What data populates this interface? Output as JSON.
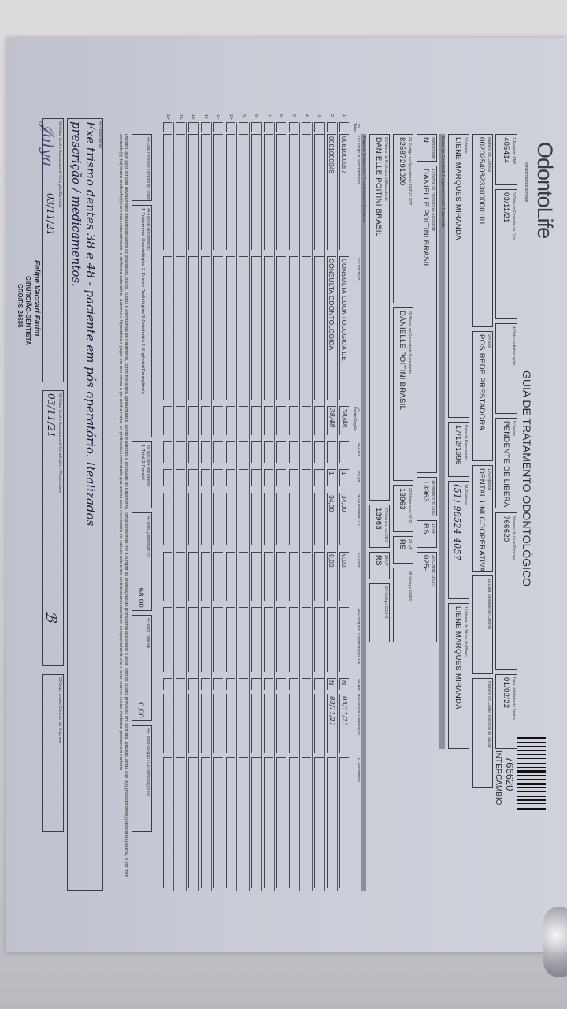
{
  "header": {
    "logo": "OdontoLife",
    "logo_tagline": "transformando sorrisos",
    "title": "GUIA DE TRATAMENTO ODONTOLÓGICO",
    "guide_number": "766620",
    "guide_type": "INTERCAMBIO"
  },
  "row1": {
    "ans": {
      "label": "1-Registro ANS",
      "value": "405414"
    },
    "emission": {
      "label": "3-Data de Emissão da Guia",
      "value": "03/11/21"
    },
    "authorization_date": {
      "label": "4-Data da Autorização",
      "value": ""
    },
    "password": {
      "label": "5-Senha",
      "value": "PENDENTE DE LIBERAÇÃO"
    },
    "main_guide": {
      "label": "Número da Guia Principal",
      "value": "766620"
    },
    "password_validity": {
      "label": "Data Validade da Senha",
      "value": "01/02/22"
    }
  },
  "row2": {
    "card": {
      "label": "Número da Carteira",
      "value": "00202540823300000101"
    },
    "plan": {
      "label": "9-Plano",
      "value": "POS REDE PRESTADORA"
    },
    "company": {
      "label": "10-Empresa",
      "value": "DENTAL UNI COOPERATIVA"
    },
    "card_validity": {
      "label": "11-Data Validade da Carteira",
      "value": ""
    },
    "sus_card": {
      "label": "Número do Cartão Nacional de Saúde",
      "value": ""
    }
  },
  "row3": {
    "name": {
      "label": "13-Nome",
      "value": "LIENE MARQUES MIRANDA"
    },
    "birth": {
      "label": "Data de Nascimento",
      "value": "17/12/1996"
    },
    "phone": {
      "label": "14-Telefone",
      "value": "(51) 98524 4057"
    },
    "holder": {
      "label": "15-Nome do Titular do Plano",
      "value": "LIENE MARQUES MIRANDA"
    }
  },
  "section_contracted": "Dados do Contratado Responsável pelo Tratamento",
  "row4": {
    "rn": {
      "label": "Atendimento a RN",
      "value": "N"
    },
    "professional": {
      "label": "17-Nome do Profissional Solicitante",
      "value": "DANIELLE POITINI BRASIL"
    },
    "cro": {
      "label": "18-Número no CRO",
      "value": "13963"
    },
    "uf": {
      "label": "19-UF",
      "value": "RS"
    },
    "cbo": {
      "label": "20-Código CBO-S",
      "value": "025-"
    }
  },
  "row5": {
    "operator_code": {
      "label": "21-Código na Operadora / CNPJ / CPF",
      "value": "82587291020"
    },
    "executor": {
      "label": "22-Nome do Contratado Executante",
      "value": "DANIELLE POITINI BRASIL"
    },
    "cro": {
      "label": "23-Número no CRO",
      "value": "13963"
    },
    "uf": {
      "label": "24-UF",
      "value": "RS"
    },
    "cnes": {
      "label": "25-Código CNES",
      "value": ""
    }
  },
  "row6": {
    "executor_prof": {
      "label": "26-Nome do Profissional Executante",
      "value": "DANIELLE POITINI BRASIL"
    },
    "cro": {
      "label": "27-Número no CRO",
      "value": "13963"
    },
    "uf": {
      "label": "28-UF",
      "value": "RS"
    },
    "cbo": {
      "label": "29-Código CBO-S",
      "value": ""
    }
  },
  "section_procedures": "Plano de Tratamento / Procedimentos Solicitados",
  "table": {
    "columns": [
      "30-Tabela",
      "31-Código do Procedimento",
      "32-Descrição",
      "33-Dente/Região",
      "34-Face",
      "35-Qtd",
      "36-Quantidade US",
      "37-Valor",
      "38-Franquia/Co-participação R$",
      "39-Aut",
      "40-Data de Realização",
      "41-Assinatura"
    ],
    "rows": [
      [
        "",
        "0081000057",
        "CONSULTA ODONTOLOGICA DE",
        "38/48",
        "",
        "1",
        "34,00",
        "0,00",
        "",
        "N",
        "03/11/21",
        ""
      ],
      [
        "",
        "0081000049",
        "CONSULTA ODONTOLOGICA",
        "38/48",
        "",
        "1",
        "34,00",
        "0,00",
        "",
        "N",
        "03/11/21",
        ""
      ]
    ]
  },
  "totals": {
    "end_date": {
      "label": "43-Data Provável Término do Tratamento",
      "value": ""
    },
    "service_type": {
      "label": "44-Tipo de Atendimento",
      "value": "1-Tratamento Odontológico 2-Exame Radiológico 3-Ortodontia 4-Urgência/Emergência"
    },
    "billing_type": {
      "label": "45-Tipo de Faturamento",
      "value": "1-Total 2-Parcial"
    },
    "total_us": {
      "label": "46-Total Quantidade US",
      "value": "68,00"
    },
    "total_value": {
      "label": "47-Valor Total R$",
      "value": "0,00"
    },
    "total_franchise": {
      "label": "48-Total Franquia / Co-participação R$",
      "value": ""
    }
  },
  "declaration": "Declaro, que após ter sido devidamente esclarecido sobre os propósitos, riscos, custos e alternativas de tratamento, conforme acima apresentados, aceito e autorizo a execução do tratamento, comprometendo-me a cumprir as orientações do profissional assistente e arcar com os custos previstos em contrato. Declaro, ainda que o(s) procedimento(s) descrito(s) acima, e por mim assinado(s), foi(foram) realizado(s) com meu consentimento e de forma satisfatória. Autorizo a Operadora a pagar em meu nome e por minha conta, ao profissional contratado que assina esse documento, os valores referentes ao tratamento realizado, comprometendo-me a arcar com os custos conforme previsto em contrato.",
  "observation": {
    "label": "49-Observação",
    "line1": "Exe trismo dentes 38 e 48 - paciente em pós operatório. Realizados",
    "line2": "prescrição / medicamentos."
  },
  "signatures": {
    "dentist": {
      "label": "50-Data, local e Assinatura do Cirurgião-Dentista",
      "stamp_name": "Felipe Vaccari Fatim",
      "stamp_title": "CIRURGIÃO-DENTISTA",
      "stamp_cro": "CRO/RS 24635",
      "date": "03/11/21"
    },
    "beneficiary": {
      "label": "52-Data, local e Assinatura do Beneficiário / Responsável",
      "date": "03/11/21"
    },
    "company": {
      "label": "53-Data, local e Carimbo da Empresa"
    }
  }
}
